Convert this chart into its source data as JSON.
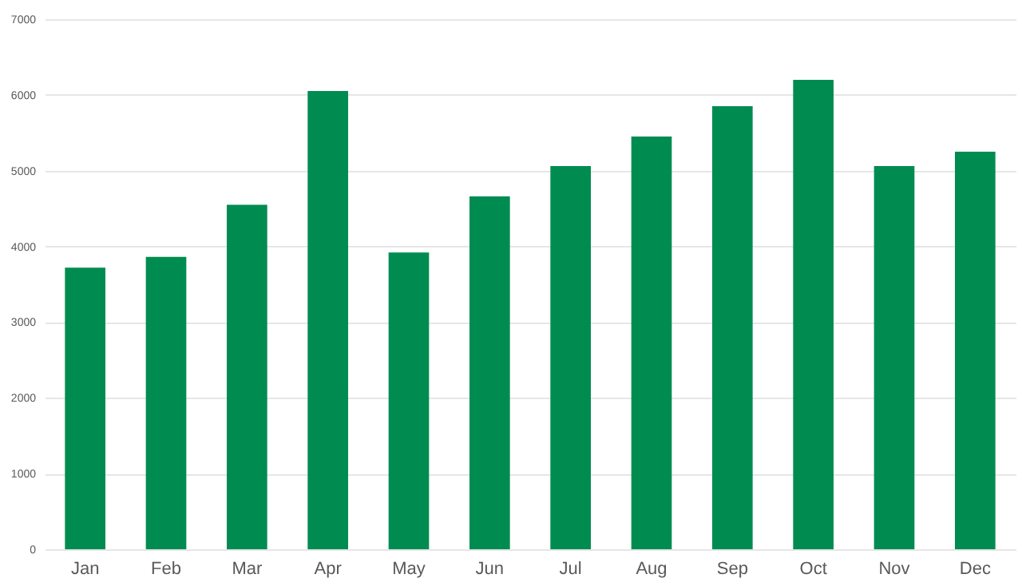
{
  "chart_data": {
    "type": "bar",
    "categories": [
      "Jan",
      "Feb",
      "Mar",
      "Apr",
      "May",
      "Jun",
      "Jul",
      "Aug",
      "Sep",
      "Oct",
      "Nov",
      "Dec"
    ],
    "values": [
      3720,
      3860,
      4550,
      6050,
      3920,
      4660,
      5060,
      5450,
      5850,
      6200,
      5060,
      5250
    ],
    "color": "#008c50",
    "ylim": [
      0,
      7000
    ],
    "yticks": [
      0,
      1000,
      2000,
      3000,
      4000,
      5000,
      6000,
      7000
    ],
    "grid": "y"
  }
}
